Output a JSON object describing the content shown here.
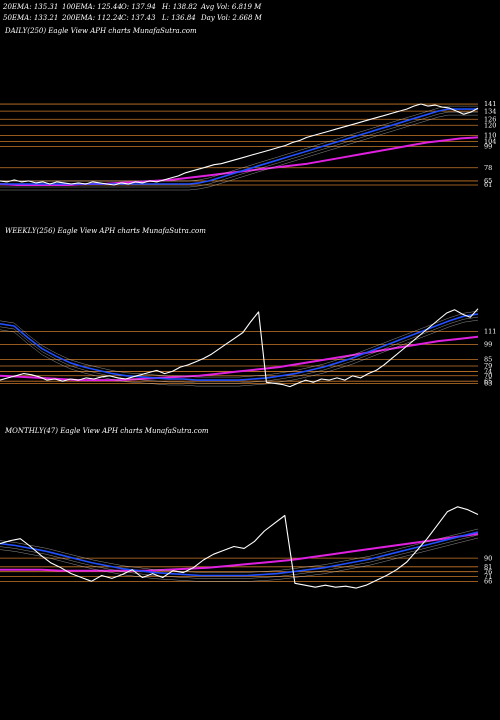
{
  "header": {
    "row1": [
      "20EMA: 135.31",
      "100EMA: 125.44",
      "O: 137.94",
      "H: 138.82",
      "Avg Vol: 6.819 M"
    ],
    "row2": [
      "50EMA: 133.21",
      "200EMA: 112.24",
      "C: 137.43",
      "L: 136.84",
      "Day Vol: 2.668  M"
    ]
  },
  "colors": {
    "background": "#000000",
    "price": "#ffffff",
    "ema_blue": "#1f4fff",
    "ema_magenta": "#e020e0",
    "gridline": "#c87828",
    "ema_thin": "#cccccc"
  },
  "chart_data": [
    {
      "type": "line",
      "title": "DAILY(250) Eagle  View  APH charts MunafaSutra.com",
      "levels": [
        141,
        134,
        126,
        120,
        110,
        104,
        99,
        78,
        65,
        61
      ],
      "ylim": [
        58,
        145
      ],
      "series": [
        {
          "role": "price",
          "values": [
            65,
            64,
            66,
            64,
            65,
            63,
            64,
            62,
            64,
            63,
            62,
            63,
            62,
            64,
            63,
            62,
            61,
            63,
            62,
            64,
            63,
            65,
            64,
            66,
            68,
            70,
            73,
            75,
            77,
            79,
            81,
            82,
            84,
            86,
            88,
            90,
            92,
            94,
            96,
            98,
            100,
            103,
            105,
            108,
            110,
            112,
            114,
            116,
            118,
            120,
            122,
            124,
            126,
            128,
            130,
            132,
            134,
            136,
            139,
            141,
            139,
            140,
            138,
            137,
            134,
            131,
            133,
            137
          ]
        },
        {
          "role": "ema_blue",
          "values": [
            62,
            62,
            62,
            62,
            62,
            62,
            62,
            62,
            62,
            62,
            62,
            62,
            62,
            62,
            62,
            62,
            62,
            62,
            62,
            62,
            63,
            65,
            68,
            71,
            74,
            77,
            80,
            83,
            86,
            89,
            92,
            95,
            98,
            101,
            104,
            107,
            110,
            113,
            116,
            119,
            122,
            125,
            128,
            131,
            134,
            136,
            136,
            136,
            136
          ]
        },
        {
          "role": "ema_magenta",
          "values": [
            62,
            61,
            61,
            61,
            61,
            62,
            62,
            63,
            64,
            65,
            66,
            68,
            70,
            72,
            74,
            76,
            78,
            80,
            82,
            85,
            88,
            91,
            94,
            97,
            100,
            103,
            105,
            107,
            108
          ]
        }
      ]
    },
    {
      "type": "line",
      "title": "WEEKLY(256) Eagle  View  APH charts MunafaSutra.com",
      "levels": [
        111,
        99,
        85,
        79,
        74,
        70,
        65,
        63
      ],
      "ylim": [
        55,
        140
      ],
      "series": [
        {
          "role": "price",
          "values": [
            66,
            68,
            70,
            72,
            71,
            69,
            66,
            67,
            65,
            67,
            66,
            68,
            67,
            69,
            70,
            68,
            67,
            69,
            71,
            73,
            75,
            72,
            74,
            78,
            80,
            83,
            86,
            90,
            95,
            100,
            105,
            110,
            120,
            129,
            64,
            63,
            62,
            60,
            63,
            66,
            64,
            67,
            66,
            68,
            66,
            70,
            68,
            72,
            75,
            80,
            86,
            92,
            98,
            104,
            110,
            116,
            122,
            128,
            131,
            127,
            124,
            132
          ]
        },
        {
          "role": "ema_blue",
          "values": [
            118,
            116,
            105,
            95,
            88,
            82,
            78,
            75,
            72,
            70,
            69,
            68,
            67,
            67,
            66,
            66,
            66,
            66,
            67,
            68,
            70,
            72,
            75,
            78,
            82,
            86,
            91,
            96,
            101,
            106,
            111,
            116,
            121,
            125,
            127
          ]
        },
        {
          "role": "ema_magenta",
          "values": [
            70,
            69,
            68,
            67,
            66,
            66,
            66,
            67,
            68,
            69,
            70,
            72,
            74,
            76,
            78,
            81,
            84,
            87,
            90,
            93,
            96,
            99,
            102,
            104,
            106
          ]
        }
      ]
    },
    {
      "type": "line",
      "title": "MONTHLY(47) Eagle  View  APH charts MunafaSutra.com",
      "levels": [
        90,
        81,
        76,
        71,
        66
      ],
      "ylim": [
        55,
        150
      ],
      "series": [
        {
          "role": "price",
          "values": [
            105,
            108,
            110,
            102,
            93,
            85,
            80,
            74,
            70,
            66,
            72,
            69,
            73,
            78,
            70,
            74,
            70,
            77,
            75,
            80,
            88,
            94,
            98,
            102,
            100,
            107,
            118,
            126,
            134,
            64,
            62,
            60,
            62,
            60,
            61,
            59,
            62,
            67,
            72,
            78,
            86,
            98,
            110,
            124,
            138,
            143,
            140,
            135
          ]
        },
        {
          "role": "ema_blue",
          "values": [
            105,
            103,
            100,
            97,
            93,
            89,
            85,
            82,
            79,
            77,
            75,
            74,
            73,
            72,
            72,
            72,
            72,
            73,
            74,
            76,
            78,
            80,
            83,
            86,
            89,
            93,
            97,
            101,
            105,
            109,
            113,
            117
          ]
        },
        {
          "role": "ema_magenta",
          "values": [
            78,
            78,
            78,
            77,
            77,
            77,
            77,
            77,
            78,
            79,
            80,
            82,
            84,
            86,
            88,
            91,
            94,
            97,
            100,
            103,
            106,
            109,
            112,
            115
          ]
        }
      ]
    }
  ]
}
